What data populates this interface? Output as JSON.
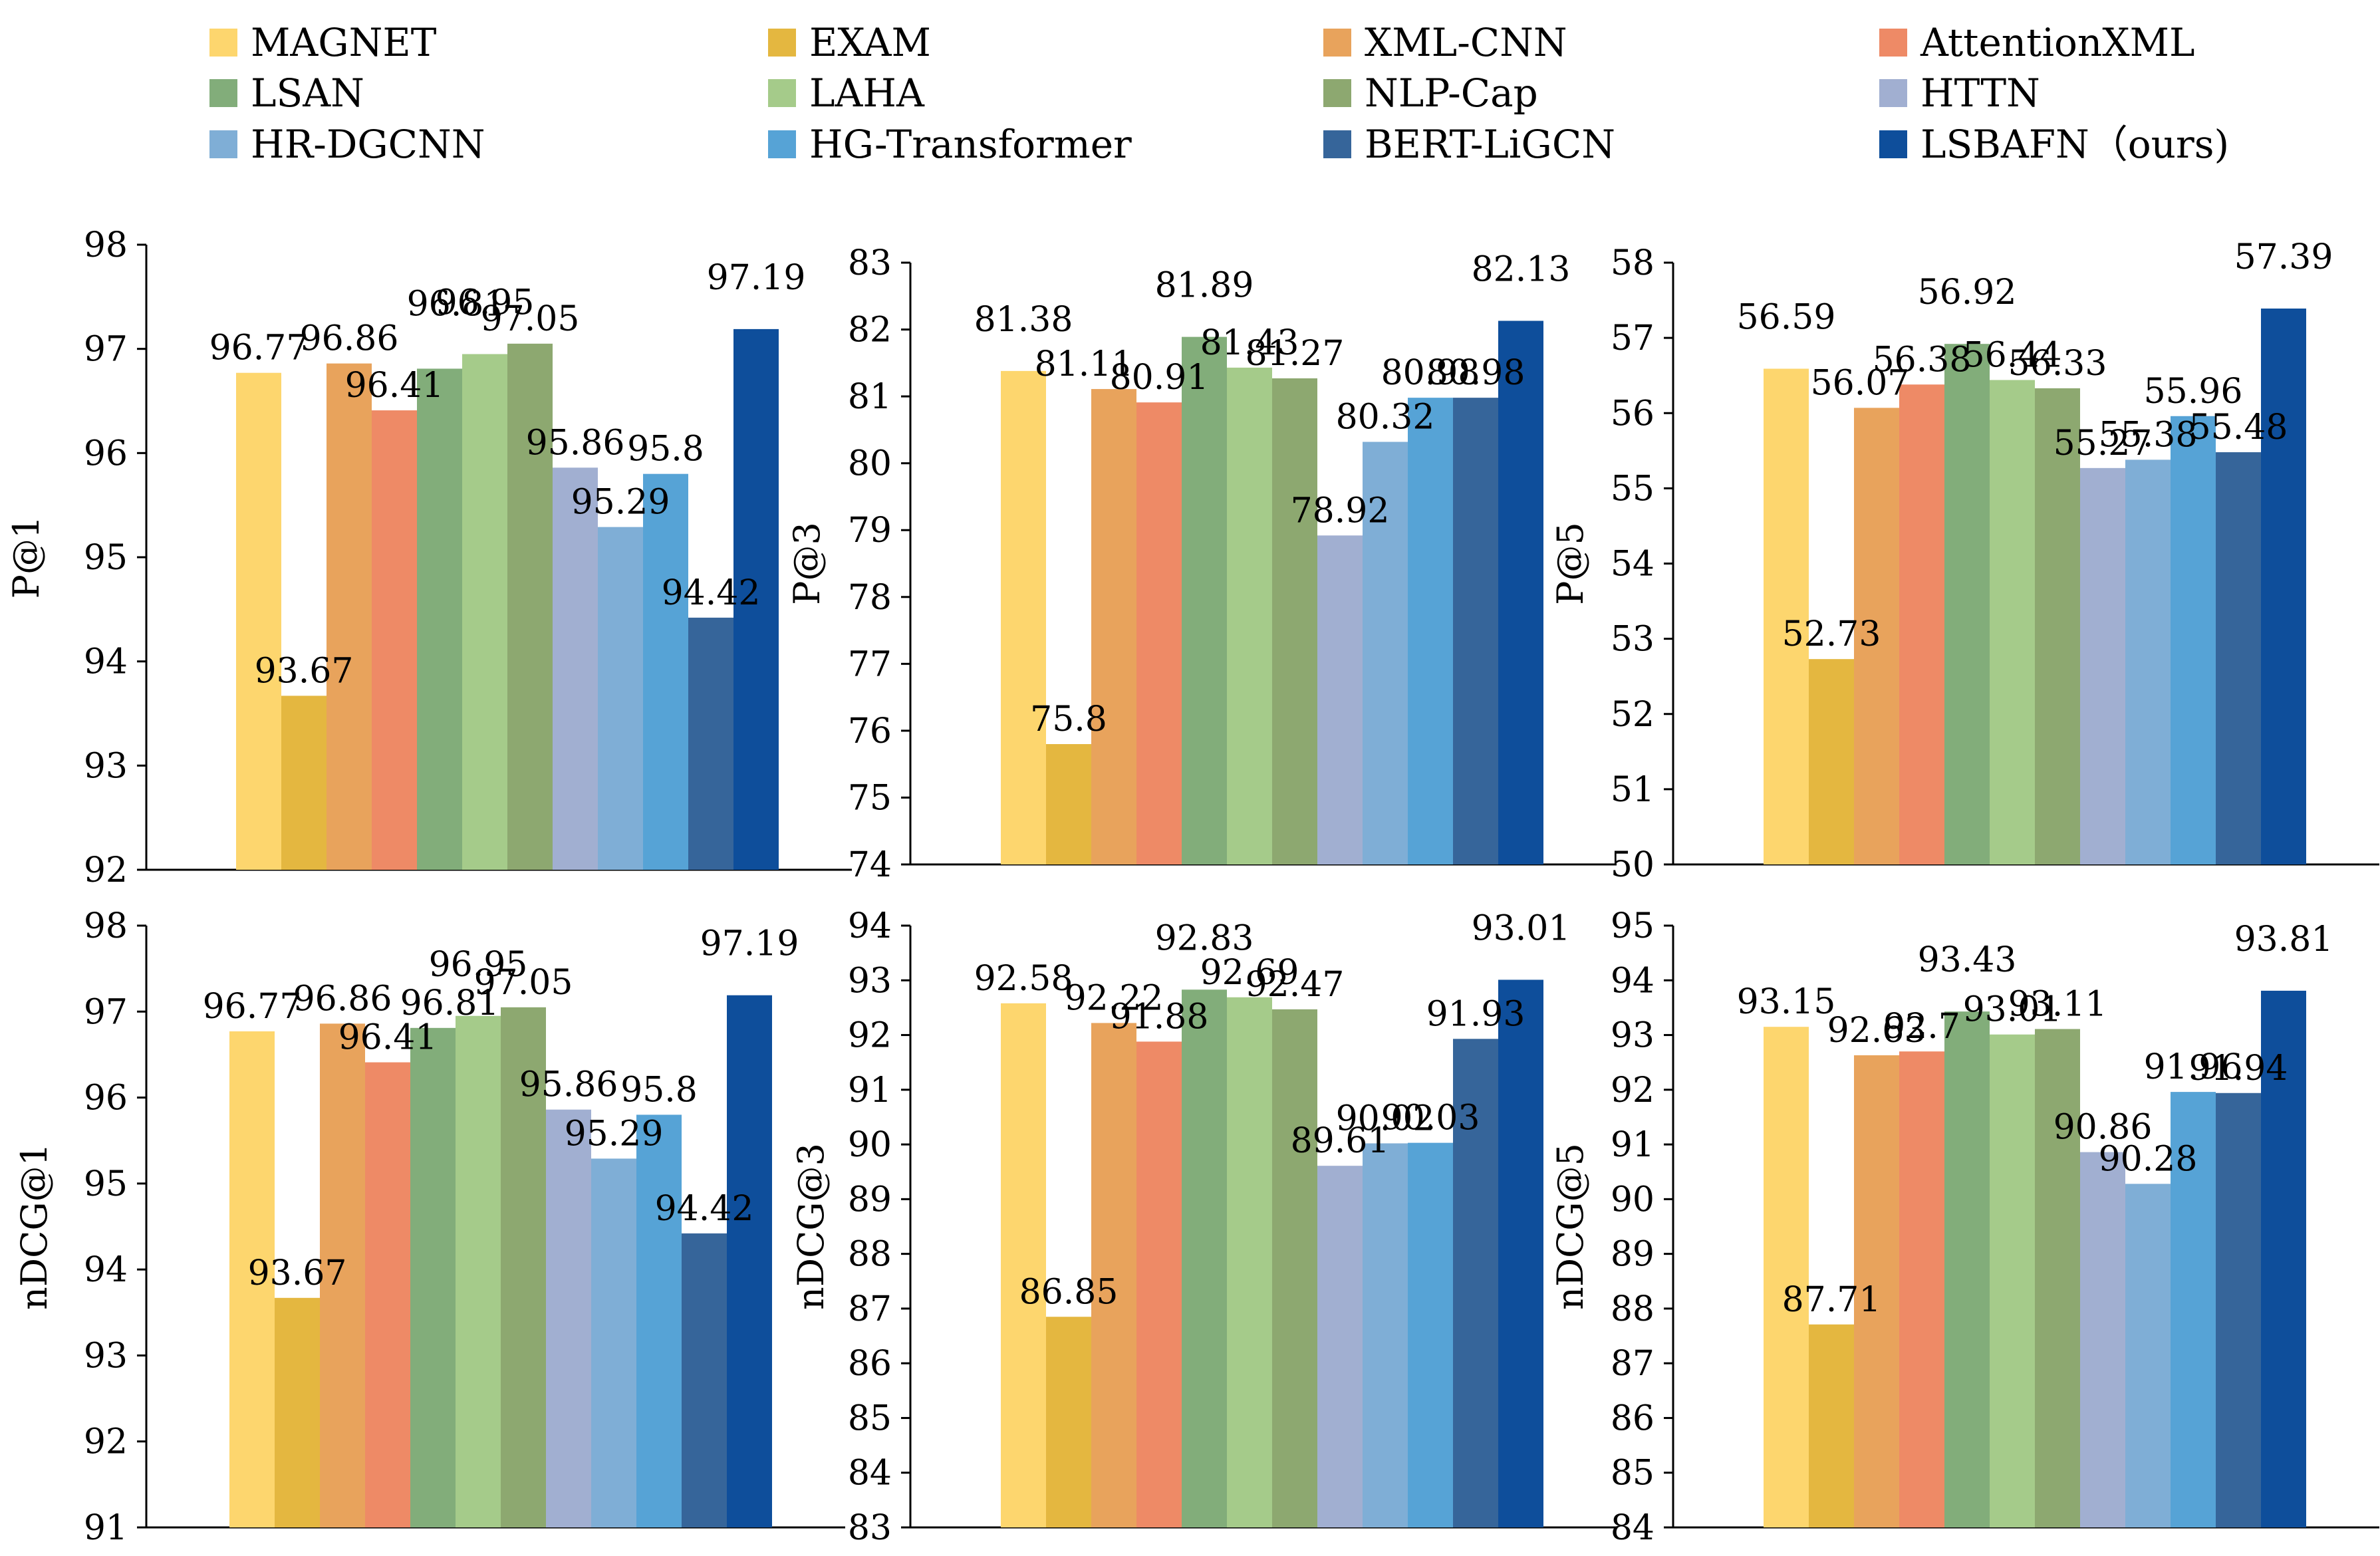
{
  "legend": {
    "items": [
      {
        "name": "MAGNET",
        "color": "#FDD66E"
      },
      {
        "name": "EXAM",
        "color": "#E4B740"
      },
      {
        "name": "XML-CNN",
        "color": "#E8A35C"
      },
      {
        "name": "AttentionXML",
        "color": "#EE8A66"
      },
      {
        "name": "LSAN",
        "color": "#82AD7A"
      },
      {
        "name": "LAHA",
        "color": "#A5CB8A"
      },
      {
        "name": "NLP-Cap",
        "color": "#8DA870"
      },
      {
        "name": "HTTN",
        "color": "#A1AFD1"
      },
      {
        "name": "HR-DGCNN",
        "color": "#7FAED6"
      },
      {
        "name": "HG-Transformer",
        "color": "#56A3D6"
      },
      {
        "name": "BERT-LiGCN",
        "color": "#36659A"
      },
      {
        "name": "LSBAFN（ours)",
        "color": "#0E4E9B"
      }
    ]
  },
  "chart_data": [
    {
      "type": "bar",
      "ylabel": "P@1",
      "ylim": [
        92,
        98
      ],
      "yticks": [
        "92",
        "93",
        "94",
        "95",
        "96",
        "97",
        "98"
      ],
      "values": [
        96.77,
        93.67,
        96.86,
        96.41,
        96.81,
        96.95,
        97.05,
        95.86,
        95.29,
        95.8,
        94.42,
        97.19
      ],
      "labels": [
        "96.77",
        "93.67",
        "96.86",
        "96.41",
        "96.81",
        "96.95",
        "97.05",
        "95.86",
        "95.29",
        "95.8",
        "94.42",
        "97.19"
      ]
    },
    {
      "type": "bar",
      "ylabel": "P@3",
      "ylim": [
        74,
        83
      ],
      "yticks": [
        "74",
        "75",
        "76",
        "77",
        "78",
        "79",
        "80",
        "81",
        "82",
        "83"
      ],
      "values": [
        81.38,
        75.8,
        81.11,
        80.91,
        81.89,
        81.43,
        81.27,
        78.92,
        80.32,
        80.98,
        80.98,
        82.13
      ],
      "labels": [
        "81.38",
        "75.8",
        "81.11",
        "80.91",
        "81.89",
        "81.43",
        "81.27",
        "78.92",
        "80.32",
        "80.98",
        "80.98",
        "82.13"
      ]
    },
    {
      "type": "bar",
      "ylabel": "P@5",
      "ylim": [
        50,
        58
      ],
      "yticks": [
        "50",
        "51",
        "52",
        "53",
        "54",
        "55",
        "56",
        "57",
        "58"
      ],
      "values": [
        56.59,
        52.73,
        56.07,
        56.38,
        56.92,
        56.44,
        56.33,
        55.27,
        55.38,
        55.96,
        55.48,
        57.39
      ],
      "labels": [
        "56.59",
        "52.73",
        "56.07",
        "56.38",
        "56.92",
        "56.44",
        "56.33",
        "55.27",
        "55.38",
        "55.96",
        "55.48",
        "57.39"
      ]
    },
    {
      "type": "bar",
      "ylabel": "nDCG@1",
      "ylim": [
        91,
        98
      ],
      "yticks": [
        "91",
        "92",
        "93",
        "94",
        "95",
        "96",
        "97",
        "98"
      ],
      "values": [
        96.77,
        93.67,
        96.86,
        96.41,
        96.81,
        96.95,
        97.05,
        95.86,
        95.29,
        95.8,
        94.42,
        97.19
      ],
      "labels": [
        "96.77",
        "93.67",
        "96.86",
        "96.41",
        "96.81",
        "96.95",
        "97.05",
        "95.86",
        "95.29",
        "95.8",
        "94.42",
        "97.19"
      ]
    },
    {
      "type": "bar",
      "ylabel": "nDCG@3",
      "ylim": [
        83,
        94
      ],
      "yticks": [
        "83",
        "84",
        "85",
        "86",
        "87",
        "88",
        "89",
        "90",
        "91",
        "92",
        "93",
        "94"
      ],
      "values": [
        92.58,
        86.85,
        92.22,
        91.88,
        92.83,
        92.69,
        92.47,
        89.61,
        90.02,
        90.03,
        91.93,
        93.01
      ],
      "labels": [
        "92.58",
        "86.85",
        "92.22",
        "91.88",
        "92.83",
        "92.69",
        "92.47",
        "89.61",
        "90.02",
        "90.03",
        "91.93",
        "93.01"
      ]
    },
    {
      "type": "bar",
      "ylabel": "nDCG@5",
      "ylim": [
        84,
        95
      ],
      "yticks": [
        "84",
        "85",
        "86",
        "87",
        "88",
        "89",
        "90",
        "91",
        "92",
        "93",
        "94",
        "95"
      ],
      "values": [
        93.15,
        87.71,
        92.63,
        92.7,
        93.43,
        93.01,
        93.11,
        90.86,
        90.28,
        91.96,
        91.94,
        93.81
      ],
      "labels": [
        "93.15",
        "87.71",
        "92.63",
        "92.7",
        "93.43",
        "93.01",
        "93.11",
        "90.86",
        "90.28",
        "91.96",
        "91.94",
        "93.81"
      ]
    }
  ]
}
